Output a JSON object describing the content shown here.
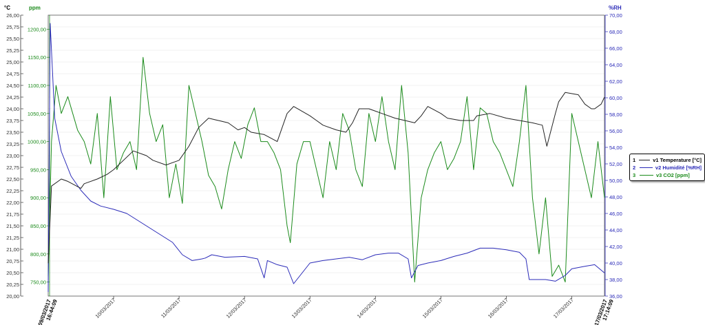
{
  "chart_data": {
    "type": "line",
    "axes": {
      "left_temperature": {
        "unit": "°C",
        "range": [
          20.0,
          26.0
        ],
        "color": "#000000",
        "ticks": [
          "20,00",
          "20,25",
          "20,50",
          "20,75",
          "21,00",
          "21,25",
          "21,50",
          "21,75",
          "22,00",
          "22,25",
          "22,50",
          "22,75",
          "23,00",
          "23,25",
          "23,50",
          "23,75",
          "24,00",
          "24,25",
          "24,50",
          "24,75",
          "25,00",
          "25,25",
          "25,50",
          "25,75",
          "26,00"
        ]
      },
      "left_co2": {
        "unit": "ppm",
        "range": [
          725,
          1225
        ],
        "color": "#1a8a1a",
        "ticks": [
          "750,00",
          "800,00",
          "850,00",
          "900,00",
          "950,00",
          "1000,00",
          "1050,00",
          "1100,00",
          "1150,00",
          "1200,00"
        ]
      },
      "right_humidity": {
        "unit": "%RH",
        "range": [
          36,
          70
        ],
        "color": "#2a2ab8",
        "ticks": [
          "36,00",
          "38,00",
          "40,00",
          "42,00",
          "44,00",
          "46,00",
          "48,00",
          "50,00",
          "52,00",
          "54,00",
          "56,00",
          "58,00",
          "60,00",
          "62,00",
          "64,00",
          "66,00",
          "68,00",
          "70,00"
        ]
      }
    },
    "x_axis": {
      "range_days": [
        9.0,
        17.5
      ],
      "start_label": [
        "09/03/2017",
        "16:44:09"
      ],
      "end_label": [
        "17/03/2017",
        "17:14:09"
      ],
      "date_ticks": [
        "10/03/2017",
        "11/03/2017",
        "12/03/2017",
        "13/03/2017",
        "14/03/2017",
        "15/03/2017",
        "16/03/2017",
        "17/03/2017"
      ]
    },
    "series": [
      {
        "index": "1",
        "name": "v1 Temperature [°C]",
        "axis": "left_temperature",
        "color": "#222222",
        "x": [
          9.0,
          9.05,
          9.2,
          9.3,
          9.5,
          9.55,
          9.75,
          9.9,
          10.0,
          10.3,
          10.5,
          10.6,
          10.8,
          11.0,
          11.15,
          11.3,
          11.45,
          11.6,
          11.75,
          11.9,
          12.0,
          12.1,
          12.3,
          12.5,
          12.6,
          12.65,
          12.75,
          13.0,
          13.1,
          13.2,
          13.4,
          13.55,
          13.65,
          13.75,
          13.9,
          14.0,
          14.1,
          14.3,
          14.45,
          14.6,
          14.7,
          14.8,
          15.0,
          15.1,
          15.3,
          15.5,
          15.55,
          15.75,
          16.0,
          16.2,
          16.4,
          16.55,
          16.62,
          16.75,
          16.8,
          16.9,
          17.1,
          17.2,
          17.3,
          17.35,
          17.45,
          17.5
        ],
        "values": [
          20.7,
          22.35,
          22.5,
          22.45,
          22.3,
          22.4,
          22.5,
          22.6,
          22.7,
          23.1,
          23.0,
          22.9,
          22.8,
          22.9,
          23.2,
          23.6,
          23.8,
          23.75,
          23.7,
          23.55,
          23.6,
          23.5,
          23.45,
          23.3,
          23.7,
          23.9,
          24.05,
          23.85,
          23.75,
          23.65,
          23.55,
          23.5,
          23.7,
          24.0,
          24.0,
          23.95,
          23.9,
          23.8,
          23.75,
          23.7,
          23.85,
          24.05,
          23.9,
          23.8,
          23.75,
          23.75,
          23.85,
          23.9,
          23.8,
          23.75,
          23.7,
          23.65,
          23.2,
          23.9,
          24.15,
          24.35,
          24.3,
          24.1,
          24.0,
          24.0,
          24.1,
          24.25
        ]
      },
      {
        "index": "2",
        "name": "v2 Humidité [%RH]",
        "axis": "right_humidity",
        "color": "#2a2ab8",
        "x": [
          9.0,
          9.03,
          9.1,
          9.2,
          9.35,
          9.5,
          9.65,
          9.8,
          10.0,
          10.2,
          10.3,
          10.5,
          10.7,
          10.9,
          11.05,
          11.2,
          11.35,
          11.4,
          11.5,
          11.7,
          12.0,
          12.2,
          12.3,
          12.35,
          12.5,
          12.65,
          12.75,
          13.0,
          13.2,
          13.4,
          13.6,
          13.8,
          14.0,
          14.2,
          14.35,
          14.5,
          14.55,
          14.65,
          14.8,
          15.0,
          15.2,
          15.4,
          15.5,
          15.6,
          15.8,
          16.0,
          16.2,
          16.3,
          16.35,
          16.45,
          16.6,
          16.75,
          16.9,
          17.0,
          17.2,
          17.35,
          17.5
        ],
        "values": [
          36.5,
          69.0,
          57.5,
          53.5,
          50.5,
          48.8,
          47.5,
          46.9,
          46.5,
          46.0,
          45.5,
          44.5,
          43.5,
          42.5,
          41.0,
          40.3,
          40.5,
          40.6,
          41.0,
          40.7,
          40.8,
          40.5,
          38.2,
          40.3,
          39.8,
          39.5,
          37.5,
          40.0,
          40.3,
          40.5,
          40.7,
          40.4,
          41.0,
          41.2,
          41.2,
          40.5,
          38.2,
          39.7,
          40.0,
          40.3,
          40.8,
          41.2,
          41.5,
          41.8,
          41.8,
          41.6,
          41.3,
          40.5,
          38.0,
          38.0,
          38.0,
          37.8,
          38.5,
          39.3,
          39.6,
          39.8,
          38.8
        ]
      },
      {
        "index": "3",
        "name": "v3 CO2 [ppm]",
        "axis": "left_co2",
        "color": "#1a8a1a",
        "x": [
          9.0,
          9.05,
          9.12,
          9.2,
          9.3,
          9.45,
          9.55,
          9.65,
          9.75,
          9.85,
          9.95,
          10.05,
          10.15,
          10.25,
          10.35,
          10.45,
          10.55,
          10.65,
          10.75,
          10.85,
          10.95,
          11.05,
          11.15,
          11.25,
          11.35,
          11.45,
          11.55,
          11.65,
          11.75,
          11.85,
          11.95,
          12.05,
          12.15,
          12.25,
          12.35,
          12.45,
          12.55,
          12.65,
          12.7,
          12.8,
          12.9,
          13.0,
          13.1,
          13.2,
          13.3,
          13.4,
          13.5,
          13.6,
          13.7,
          13.8,
          13.9,
          14.0,
          14.1,
          14.2,
          14.3,
          14.4,
          14.5,
          14.6,
          14.7,
          14.8,
          14.9,
          15.0,
          15.1,
          15.2,
          15.3,
          15.4,
          15.5,
          15.6,
          15.7,
          15.8,
          15.9,
          16.0,
          16.1,
          16.2,
          16.3,
          16.4,
          16.5,
          16.6,
          16.7,
          16.8,
          16.9,
          17.0,
          17.1,
          17.2,
          17.3,
          17.4,
          17.5
        ],
        "values": [
          760,
          1000,
          1100,
          1050,
          1080,
          1020,
          1000,
          960,
          1050,
          900,
          1080,
          950,
          980,
          1000,
          950,
          1150,
          1050,
          1000,
          1030,
          900,
          960,
          890,
          1100,
          1050,
          1000,
          940,
          920,
          880,
          950,
          1000,
          970,
          1030,
          1060,
          1000,
          1000,
          980,
          950,
          850,
          820,
          960,
          1000,
          1000,
          950,
          900,
          1000,
          950,
          1050,
          1020,
          950,
          920,
          1050,
          1000,
          1080,
          1000,
          950,
          1100,
          980,
          750,
          900,
          950,
          980,
          1000,
          950,
          970,
          1000,
          1080,
          950,
          1060,
          1050,
          1000,
          980,
          950,
          920,
          1000,
          1100,
          900,
          800,
          900,
          760,
          780,
          750,
          1050,
          1000,
          950,
          900,
          1000,
          900
        ]
      }
    ]
  }
}
